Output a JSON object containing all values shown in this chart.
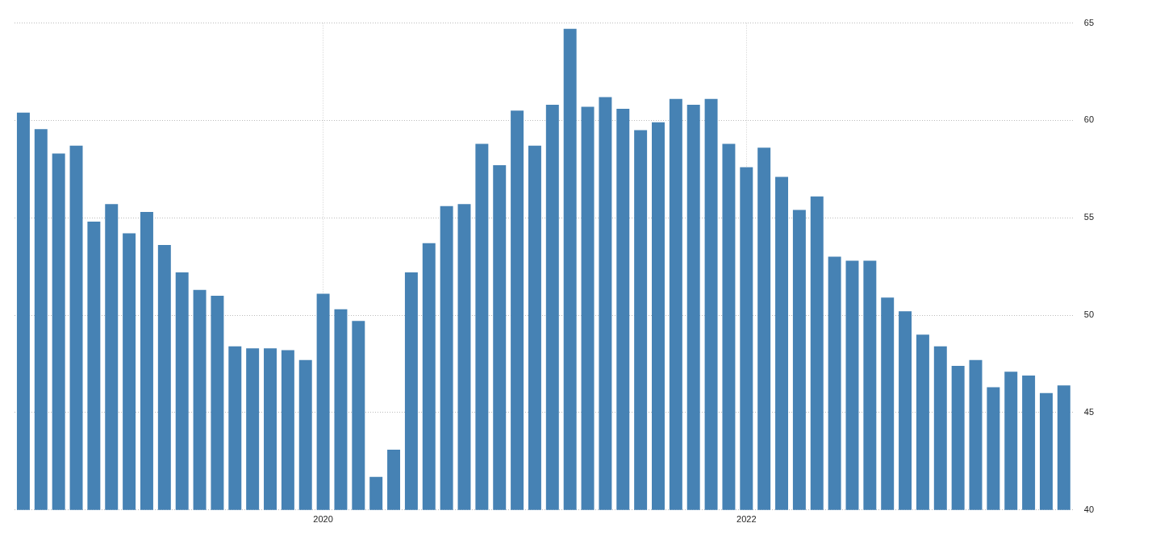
{
  "chart_data": {
    "type": "bar",
    "categories": [
      null,
      null,
      null,
      null,
      null,
      null,
      null,
      null,
      null,
      null,
      null,
      null,
      null,
      null,
      null,
      null,
      null,
      "2020",
      null,
      null,
      null,
      null,
      null,
      null,
      null,
      null,
      null,
      null,
      null,
      null,
      null,
      null,
      null,
      null,
      null,
      null,
      null,
      null,
      null,
      null,
      null,
      "2022",
      null,
      null,
      null,
      null,
      null,
      null,
      null,
      null,
      null,
      null,
      null,
      null,
      null,
      null,
      null,
      null,
      null,
      null
    ],
    "values": [
      60.4,
      59.55,
      58.3,
      58.7,
      54.8,
      55.7,
      54.2,
      55.3,
      53.6,
      52.2,
      51.3,
      51.0,
      48.4,
      48.3,
      48.3,
      48.2,
      47.7,
      51.1,
      50.3,
      49.7,
      41.7,
      43.1,
      52.2,
      53.7,
      55.6,
      55.7,
      58.8,
      57.7,
      60.5,
      58.7,
      60.8,
      64.7,
      60.7,
      61.2,
      60.6,
      59.5,
      59.9,
      61.1,
      60.8,
      61.1,
      58.8,
      57.6,
      58.6,
      57.1,
      55.4,
      56.1,
      53.0,
      52.8,
      52.8,
      50.9,
      50.2,
      49.0,
      48.4,
      47.4,
      47.7,
      46.3,
      47.1,
      46.9,
      46.0,
      46.4
    ],
    "color": "#4682b4",
    "ylim": [
      40,
      65
    ],
    "yticks": [
      40,
      45,
      50,
      55,
      60,
      65
    ],
    "grid": true,
    "legend": false
  }
}
